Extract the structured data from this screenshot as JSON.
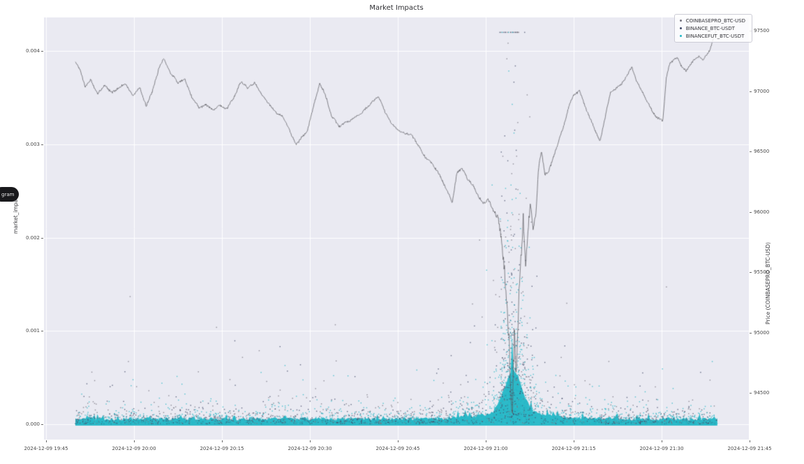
{
  "overlay_badge": {
    "label": "gram"
  },
  "chart": {
    "title": "Market Impacts",
    "y_axis_label": "market_impact",
    "y2_axis_label": "Price (COINBASEPRO_BTC-USD)"
  },
  "chart_data": {
    "type": "scatter",
    "title": "Market Impacts",
    "xlabel": "",
    "background": "#eaeaf2",
    "grid_color": "#ffffff",
    "grid": true,
    "legend_position": "upper right",
    "x_ticks": [
      "2024-12-09 19:45",
      "2024-12-09 20:00",
      "2024-12-09 20:15",
      "2024-12-09 20:30",
      "2024-12-09 20:45",
      "2024-12-09 21:00",
      "2024-12-09 21:15",
      "2024-12-09 21:30",
      "2024-12-09 21:45"
    ],
    "x_tick_minutes": [
      0,
      15,
      30,
      45,
      60,
      75,
      90,
      105,
      120
    ],
    "x_data_range_minutes": [
      5,
      114.5
    ],
    "y_left": {
      "label": "market_impact",
      "tick_labels": [
        "0.000",
        "0.001",
        "0.002",
        "0.003",
        "0.004"
      ],
      "tick_values": [
        0.0,
        0.001,
        0.002,
        0.003,
        0.004
      ],
      "range": [
        -0.000165,
        0.00436
      ]
    },
    "y_right": {
      "label": "Price (COINBASEPRO_BTC-USD)",
      "tick_labels": [
        "94500",
        "95000",
        "95500",
        "96000",
        "96500",
        "97000",
        "97500"
      ],
      "tick_values": [
        94500,
        95000,
        95500,
        96000,
        96500,
        97000,
        97500
      ],
      "range": [
        94115,
        97610
      ]
    },
    "series": [
      {
        "label": "COINBASEPRO_BTC-USD",
        "type": "scatter",
        "color": "#75737e",
        "count": 700,
        "base_scale": 7e-05,
        "crash_boost": 16
      },
      {
        "label": "BINANCE_BTC-USDT",
        "type": "scatter",
        "color": "#414a68",
        "count": 1100,
        "base_scale": 5e-05,
        "crash_boost": 12
      },
      {
        "label": "BINANCEFUT_BTC-USDT",
        "type": "scatter",
        "color": "#23b7c6",
        "count": 2600,
        "base_scale": 3.5e-05,
        "crash_boost": 12
      }
    ],
    "band": {
      "color": "#23b7c6",
      "base_top": 5.5e-05,
      "crash_peak": 0.00045,
      "crash_center_minute": 79.7
    },
    "crash": {
      "center_minute": 79.6,
      "min_price": 94280
    },
    "price_line": {
      "name": "Price (COINBASEPRO_BTC-USD)",
      "color": "#58585e",
      "points": [
        [
          5.0,
          97246
        ],
        [
          5.8,
          97176
        ],
        [
          6.7,
          97032
        ],
        [
          7.6,
          97090
        ],
        [
          8.8,
          96974
        ],
        [
          10.0,
          97049
        ],
        [
          11.2,
          96991
        ],
        [
          12.4,
          97026
        ],
        [
          13.6,
          97061
        ],
        [
          14.8,
          96968
        ],
        [
          16.0,
          97026
        ],
        [
          17.1,
          96876
        ],
        [
          18.1,
          96991
        ],
        [
          19.3,
          97199
        ],
        [
          20.1,
          97269
        ],
        [
          21.3,
          97142
        ],
        [
          22.5,
          97072
        ],
        [
          23.7,
          97101
        ],
        [
          24.9,
          96945
        ],
        [
          26.1,
          96858
        ],
        [
          27.3,
          96893
        ],
        [
          28.5,
          96841
        ],
        [
          29.6,
          96887
        ],
        [
          30.8,
          96853
        ],
        [
          32.0,
          96939
        ],
        [
          33.2,
          97078
        ],
        [
          34.4,
          97026
        ],
        [
          35.6,
          97066
        ],
        [
          36.8,
          96968
        ],
        [
          38.0,
          96893
        ],
        [
          39.2,
          96824
        ],
        [
          40.4,
          96795
        ],
        [
          41.5,
          96679
        ],
        [
          42.7,
          96564
        ],
        [
          43.7,
          96621
        ],
        [
          44.6,
          96673
        ],
        [
          45.7,
          96887
        ],
        [
          46.7,
          97061
        ],
        [
          47.6,
          96968
        ],
        [
          48.7,
          96795
        ],
        [
          49.9,
          96708
        ],
        [
          51.1,
          96737
        ],
        [
          52.3,
          96772
        ],
        [
          53.5,
          96806
        ],
        [
          54.6,
          96864
        ],
        [
          55.8,
          96922
        ],
        [
          56.8,
          96951
        ],
        [
          57.9,
          96824
        ],
        [
          58.9,
          96737
        ],
        [
          60.0,
          96679
        ],
        [
          61.2,
          96650
        ],
        [
          62.4,
          96639
        ],
        [
          63.6,
          96535
        ],
        [
          64.8,
          96448
        ],
        [
          66.0,
          96390
        ],
        [
          67.1,
          96303
        ],
        [
          68.3,
          96188
        ],
        [
          69.3,
          96072
        ],
        [
          70.1,
          96332
        ],
        [
          71.0,
          96361
        ],
        [
          71.9,
          96275
        ],
        [
          72.9,
          96217
        ],
        [
          73.7,
          96142
        ],
        [
          74.5,
          96072
        ],
        [
          75.5,
          96101
        ],
        [
          76.4,
          96015
        ],
        [
          77.3,
          95899
        ],
        [
          77.9,
          95668
        ],
        [
          78.5,
          95321
        ],
        [
          79.0,
          94859
        ],
        [
          79.5,
          94280
        ],
        [
          79.9,
          94974
        ],
        [
          80.2,
          94569
        ],
        [
          80.7,
          95321
        ],
        [
          81.1,
          95668
        ],
        [
          81.4,
          95957
        ],
        [
          81.8,
          95552
        ],
        [
          82.1,
          95783
        ],
        [
          82.6,
          96072
        ],
        [
          83.1,
          95841
        ],
        [
          83.6,
          96015
        ],
        [
          84.0,
          96361
        ],
        [
          84.5,
          96506
        ],
        [
          85.1,
          96303
        ],
        [
          85.7,
          96332
        ],
        [
          86.3,
          96419
        ],
        [
          86.9,
          96506
        ],
        [
          87.5,
          96592
        ],
        [
          88.3,
          96708
        ],
        [
          89.2,
          96882
        ],
        [
          90.0,
          96968
        ],
        [
          91.0,
          96997
        ],
        [
          91.9,
          96882
        ],
        [
          92.7,
          96795
        ],
        [
          93.6,
          96679
        ],
        [
          94.5,
          96592
        ],
        [
          95.5,
          96824
        ],
        [
          96.3,
          96997
        ],
        [
          97.3,
          97026
        ],
        [
          98.1,
          97055
        ],
        [
          99.0,
          97113
        ],
        [
          99.9,
          97199
        ],
        [
          100.7,
          97084
        ],
        [
          101.7,
          96997
        ],
        [
          102.6,
          96910
        ],
        [
          103.5,
          96824
        ],
        [
          104.3,
          96778
        ],
        [
          105.2,
          96754
        ],
        [
          105.8,
          97113
        ],
        [
          106.4,
          97228
        ],
        [
          107.1,
          97257
        ],
        [
          107.7,
          97275
        ],
        [
          108.5,
          97199
        ],
        [
          109.2,
          97170
        ],
        [
          109.9,
          97217
        ],
        [
          110.6,
          97257
        ],
        [
          111.3,
          97286
        ],
        [
          112.0,
          97257
        ],
        [
          112.7,
          97297
        ],
        [
          113.3,
          97344
        ],
        [
          113.8,
          97430
        ],
        [
          114.3,
          97506
        ]
      ]
    }
  }
}
